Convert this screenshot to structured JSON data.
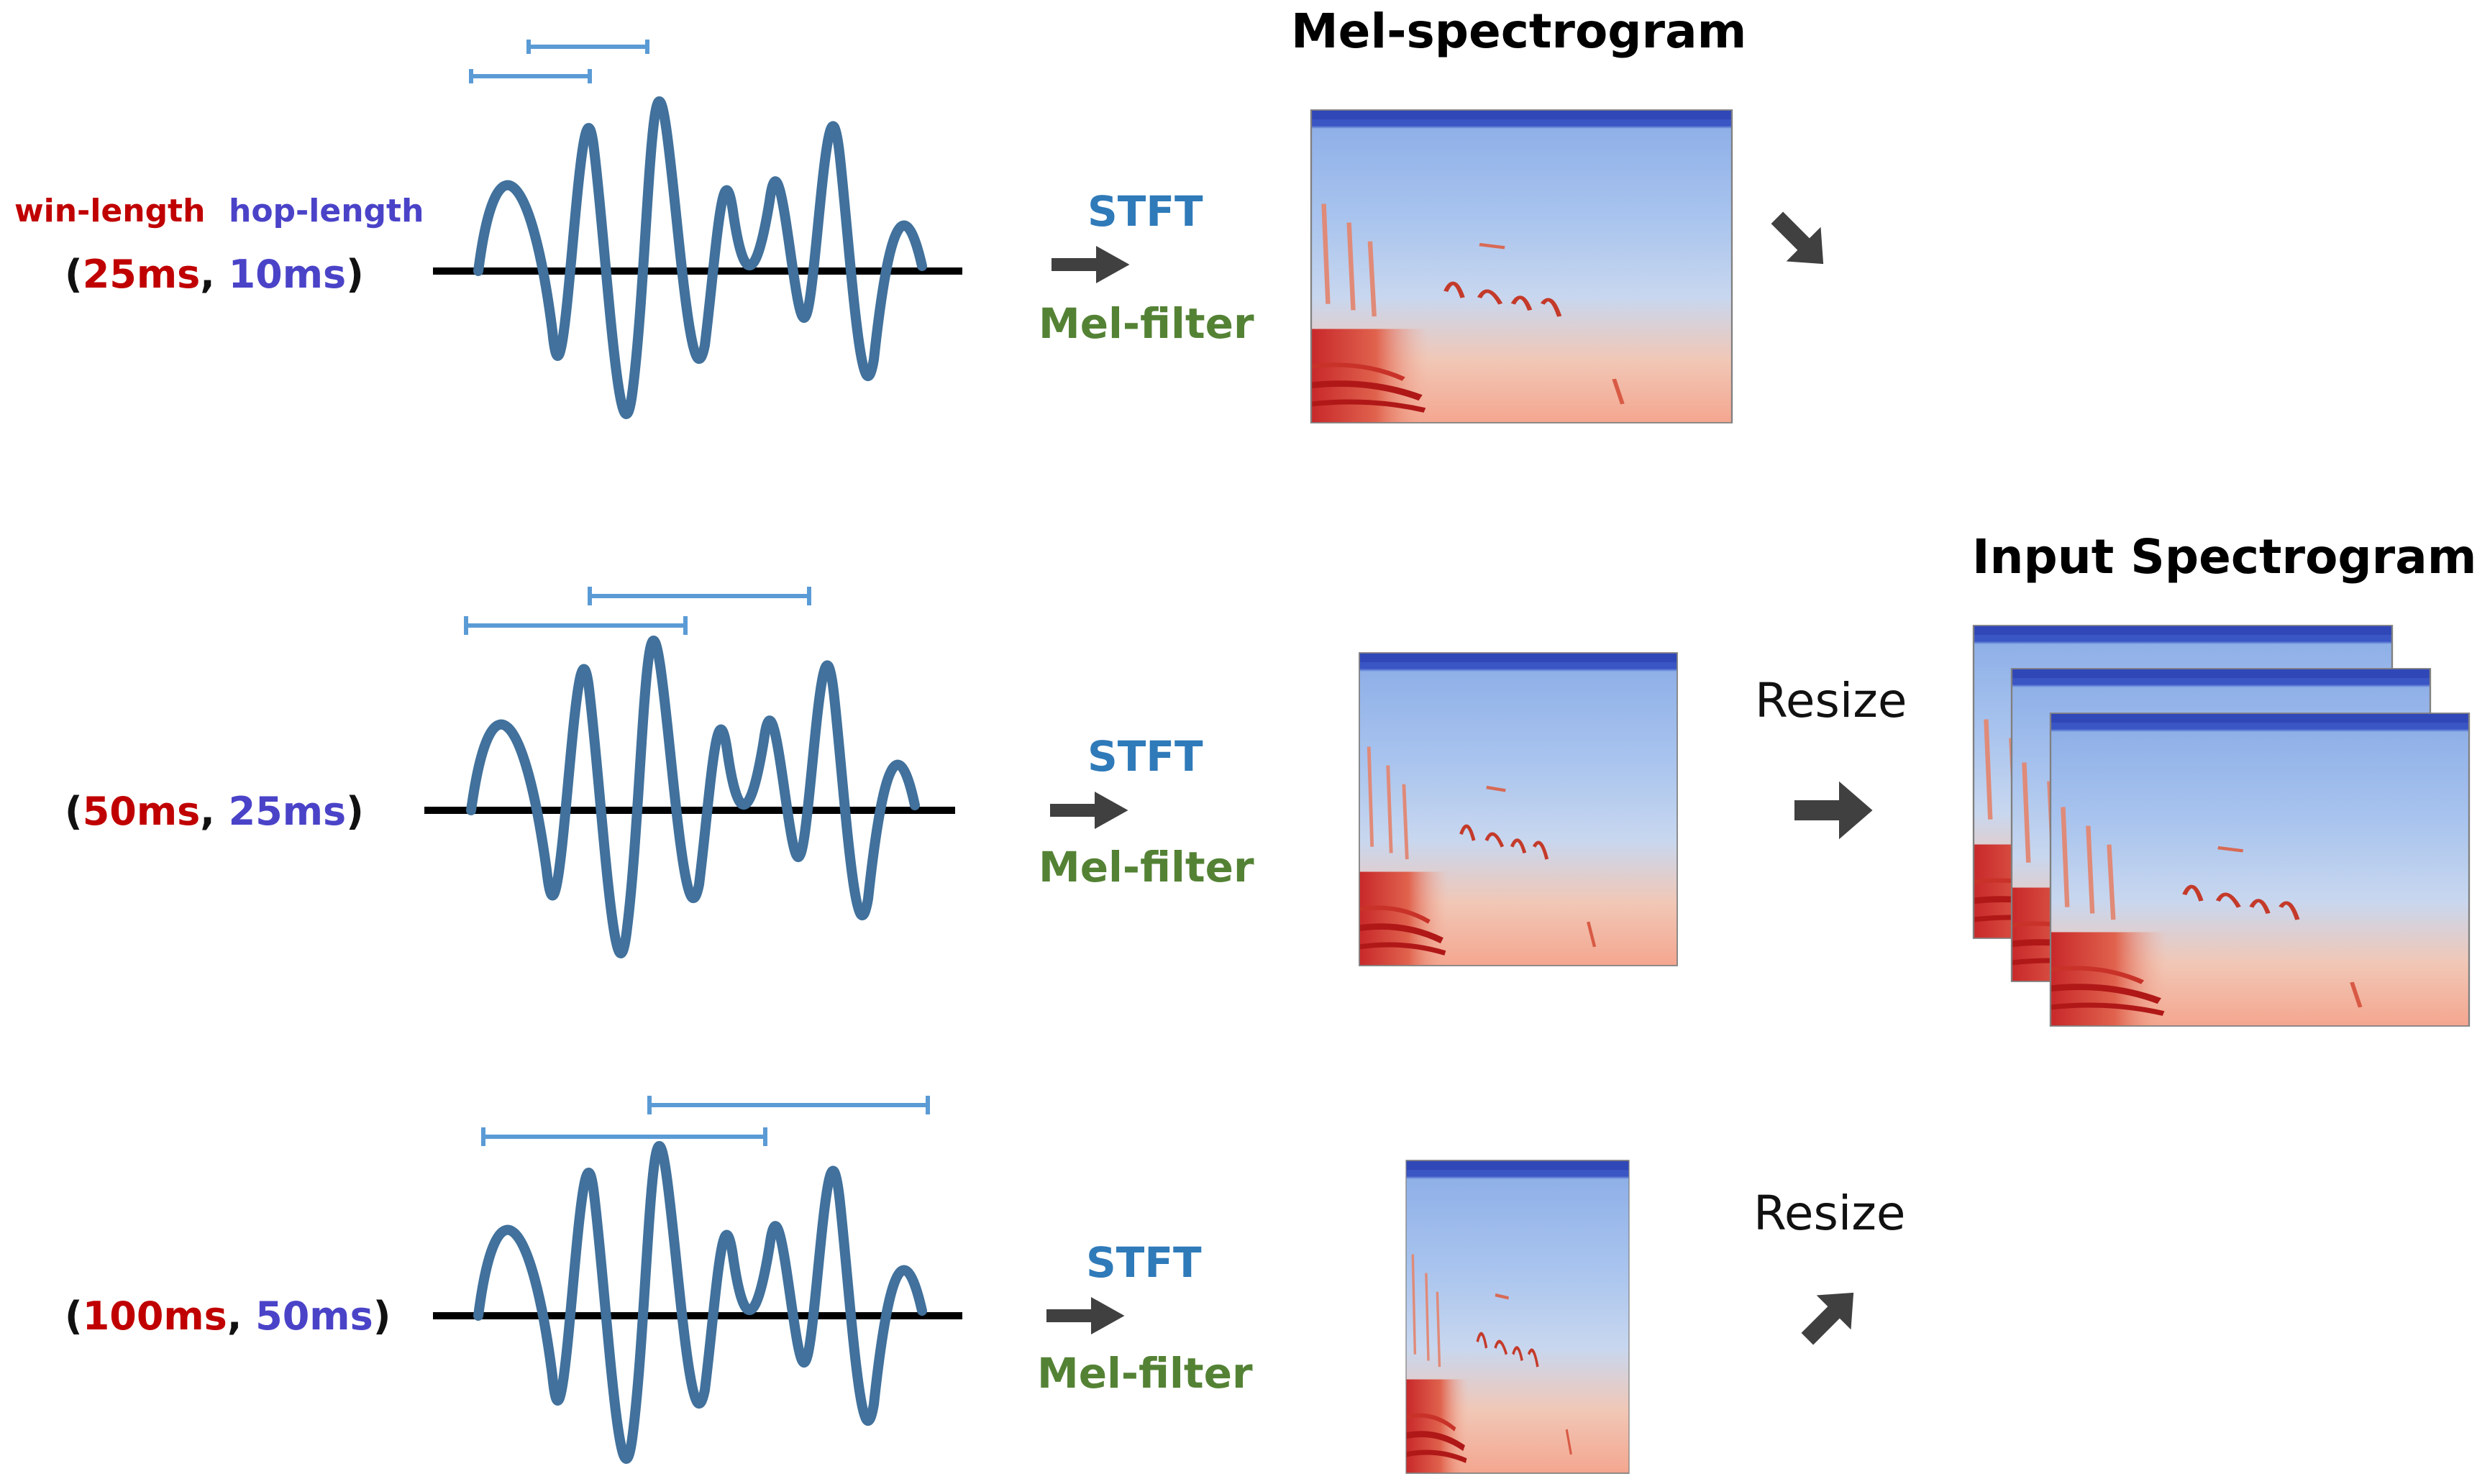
{
  "labels": {
    "win_length": "win-length",
    "hop_length": "hop-length",
    "mel_spectrogram_title": "Mel-spectrogram",
    "input_spectrogram_title": "Input Spectrogram",
    "stft": "STFT",
    "mel_filter": "Mel-filter",
    "resize": "Resize"
  },
  "rows": [
    {
      "open": "(",
      "win": "25ms",
      "comma": ",",
      "hop": "10ms",
      "close": ")"
    },
    {
      "open": "(",
      "win": "50ms",
      "comma": ",",
      "hop": "25ms",
      "close": ")"
    },
    {
      "open": "(",
      "win": "100ms",
      "comma": ",",
      "hop": "50ms",
      "close": ")"
    }
  ],
  "colors": {
    "win": "#c00000",
    "hop": "#4a43c8",
    "stft": "#2f7ab9",
    "mel_filter": "#548235",
    "waveform": "#41719c",
    "bracket": "#5b9bd5",
    "arrow": "#404040"
  }
}
